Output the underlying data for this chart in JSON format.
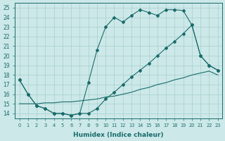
{
  "xlabel": "Humidex (Indice chaleur)",
  "bg_color": "#cce8e8",
  "line_color": "#1a6b6b",
  "xlim": [
    -0.5,
    23.5
  ],
  "ylim": [
    13.5,
    25.5
  ],
  "xticks": [
    0,
    1,
    2,
    3,
    4,
    5,
    6,
    7,
    8,
    9,
    10,
    11,
    12,
    13,
    14,
    15,
    16,
    17,
    18,
    19,
    20,
    21,
    22,
    23
  ],
  "yticks": [
    14,
    15,
    16,
    17,
    18,
    19,
    20,
    21,
    22,
    23,
    24,
    25
  ],
  "s1_x": [
    0,
    1,
    2,
    3,
    4,
    5,
    6,
    7,
    8,
    9,
    10,
    11,
    12,
    13,
    14,
    15,
    16,
    17,
    18,
    19,
    20,
    21,
    22,
    23
  ],
  "s1_y": [
    17.5,
    16.0,
    14.8,
    14.5,
    14.0,
    14.0,
    13.8,
    14.0,
    17.2,
    20.6,
    23.0,
    24.0,
    23.5,
    24.2,
    24.8,
    24.5,
    24.2,
    24.8,
    24.8,
    24.7,
    23.2,
    20.0,
    19.0,
    18.5
  ],
  "s2_x": [
    0,
    1,
    2,
    3,
    4,
    5,
    6,
    7,
    8,
    9,
    10,
    11,
    12,
    13,
    14,
    15,
    16,
    17,
    18,
    19,
    20,
    21,
    22,
    23
  ],
  "s2_y": [
    17.5,
    16.0,
    14.8,
    14.5,
    14.0,
    14.0,
    13.8,
    14.0,
    14.0,
    14.5,
    15.5,
    16.2,
    17.0,
    17.8,
    18.5,
    19.2,
    20.0,
    20.8,
    21.5,
    22.3,
    23.2,
    20.0,
    19.0,
    18.5
  ],
  "s3_x": [
    0,
    1,
    2,
    3,
    4,
    5,
    6,
    7,
    8,
    9,
    10,
    11,
    12,
    13,
    14,
    15,
    16,
    17,
    18,
    19,
    20,
    21,
    22,
    23
  ],
  "s3_y": [
    15.0,
    15.0,
    15.0,
    15.1,
    15.1,
    15.2,
    15.2,
    15.3,
    15.4,
    15.5,
    15.7,
    15.8,
    16.0,
    16.2,
    16.5,
    16.7,
    17.0,
    17.2,
    17.5,
    17.7,
    18.0,
    18.2,
    18.4,
    18.0
  ]
}
